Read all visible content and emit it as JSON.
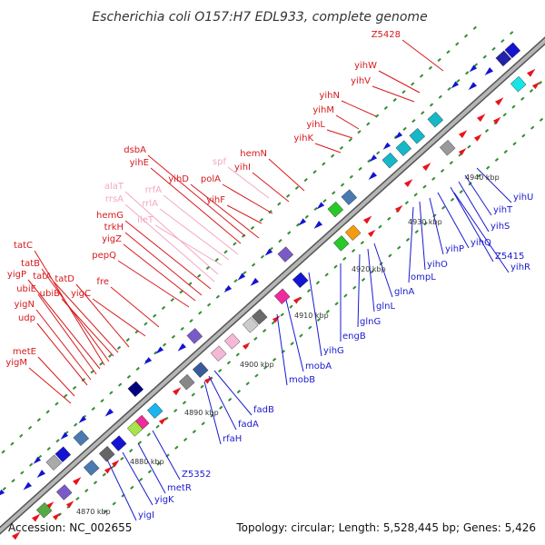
{
  "map": {
    "title": "Escherichia coli O157:H7 EDL933, complete genome",
    "accession": "Accession: NC_002655",
    "topology": "Topology: circular; Length: 5,528,445 bp; Genes: 5,426"
  },
  "colors": {
    "backbone": "#9e9e9e",
    "forward_label": "#d7191c",
    "rna_label": "#f4a7c4",
    "reverse_label": "#1a1ad0",
    "ticks": "#2f8f2f"
  },
  "scale": {
    "ticks": [
      "4870 kbp",
      "4880 kbp",
      "4890 kbp",
      "4900 kbp",
      "4910 kbp",
      "4920 kbp",
      "4930 kbp",
      "4940 kbp"
    ]
  },
  "forward_genes": [
    "Z5428",
    "yihW",
    "yihV",
    "yihN",
    "yihM",
    "yihL",
    "yihK",
    "hemN",
    "yihI",
    "polA",
    "yihF",
    "yihD",
    "dsbA",
    "yihE",
    "hemG",
    "trkH",
    "yigZ",
    "pepQ",
    "fre",
    "yigC",
    "tatD",
    "tatA",
    "ubiB",
    "tatB",
    "tatC",
    "yigP",
    "ubiE",
    "yigN",
    "udp",
    "metE",
    "yigM"
  ],
  "rna_genes": [
    "spf",
    "rrfA",
    "rrlA",
    "ileT",
    "alaT",
    "rrsA"
  ],
  "reverse_genes": [
    "yihU",
    "yihT",
    "yihS",
    "Z5415",
    "yihR",
    "yihQ",
    "yihP",
    "yihO",
    "ompL",
    "glnA",
    "glnL",
    "glnG",
    "engB",
    "yihG",
    "mobA",
    "mobB",
    "fadB",
    "fadA",
    "rfaH",
    "Z5352",
    "metR",
    "yigK",
    "yigI"
  ]
}
